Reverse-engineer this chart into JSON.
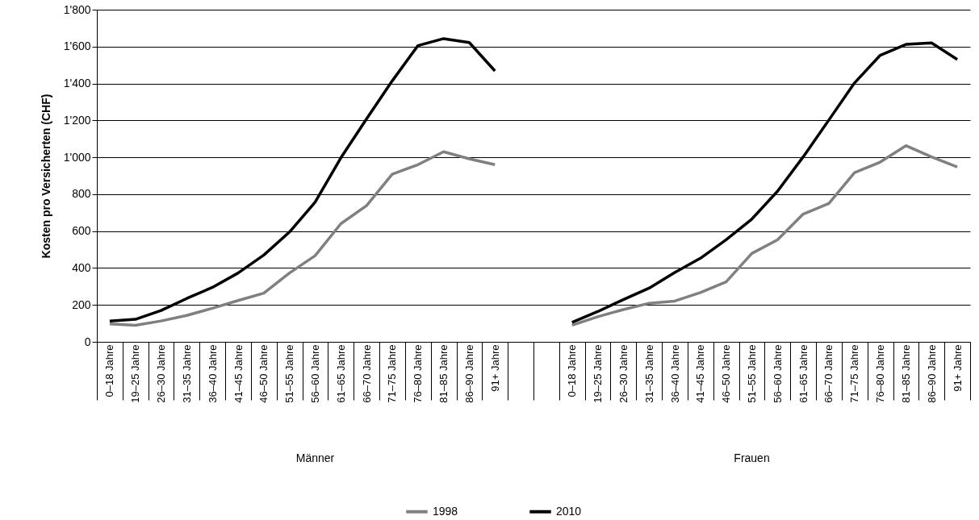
{
  "chart_data": {
    "type": "line",
    "ylabel": "Kosten pro Versicherten (CHF)",
    "categories": [
      "0–18 Jahre",
      "19–25 Jahre",
      "26–30 Jahre",
      "31–35 Jahre",
      "36–40 Jahre",
      "41–45 Jahre",
      "46–50 Jahre",
      "51–55 Jahre",
      "56–60 Jahre",
      "61–65 Jahre",
      "66–70 Jahre",
      "71–75 Jahre",
      "76–80 Jahre",
      "81–85 Jahre",
      "86–90 Jahre",
      "91+ Jahre",
      null,
      null,
      "0–18 Jahre",
      "19–25 Jahre",
      "26–30 Jahre",
      "31–35 Jahre",
      "36–40 Jahre",
      "41–45 Jahre",
      "46–50 Jahre",
      "51–55 Jahre",
      "56–60 Jahre",
      "61–65 Jahre",
      "66–70 Jahre",
      "71–75 Jahre",
      "76–80 Jahre",
      "81–85 Jahre",
      "86–90 Jahre",
      "91+ Jahre"
    ],
    "series": [
      {
        "name": "1998",
        "color": "#808080",
        "values": [
          97,
          90,
          113,
          143,
          182,
          224,
          264,
          373,
          467,
          640,
          738,
          908,
          960,
          1030,
          992,
          960,
          null,
          null,
          90,
          136,
          175,
          209,
          221,
          267,
          325,
          479,
          553,
          692,
          750,
          917,
          974,
          1063,
          1002,
          947
        ]
      },
      {
        "name": "2010",
        "color": "#000000",
        "values": [
          113,
          122,
          170,
          235,
          295,
          373,
          470,
          595,
          757,
          997,
          1208,
          1414,
          1605,
          1643,
          1622,
          1468,
          null,
          null,
          105,
          164,
          229,
          291,
          376,
          453,
          553,
          665,
          816,
          1002,
          1202,
          1403,
          1553,
          1612,
          1620,
          1530
        ]
      }
    ],
    "ylim": [
      0,
      1800
    ],
    "yticks": [
      0,
      200,
      400,
      600,
      800,
      {
        "value": 1000,
        "label": "1'000"
      },
      {
        "value": 1200,
        "label": "1'200"
      },
      {
        "value": 1400,
        "label": "1'400"
      },
      {
        "value": 1600,
        "label": "1'600"
      },
      {
        "value": 1800,
        "label": "1'800"
      }
    ],
    "annotations": [
      "Männer",
      "Frauen"
    ],
    "grid": "y",
    "legend": "bottom"
  }
}
